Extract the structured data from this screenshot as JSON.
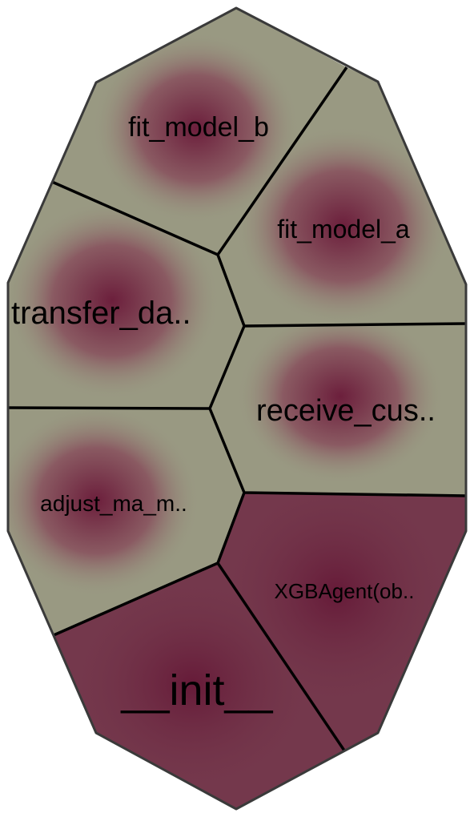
{
  "colors": {
    "cell_fill_light": "#999982",
    "cell_fill_dark": "#74384c",
    "cell_center_dark": "#6c1f3c",
    "border": "#000000",
    "outline": "#3a3a3a",
    "label": "#000000"
  },
  "cells": [
    {
      "id": "fit_model_b",
      "label": "fit_model_b",
      "tone": "light"
    },
    {
      "id": "fit_model_a",
      "label": "fit_model_a",
      "tone": "light"
    },
    {
      "id": "transfer_da",
      "label": "transfer_da..",
      "tone": "light"
    },
    {
      "id": "receive_cus",
      "label": "receive_cus..",
      "tone": "light"
    },
    {
      "id": "adjust_ma_m",
      "label": "adjust_ma_m..",
      "tone": "light"
    },
    {
      "id": "xgbagent",
      "label": "XGBAgent(ob..",
      "tone": "dark"
    },
    {
      "id": "init",
      "label": "__init__",
      "tone": "dark"
    }
  ]
}
